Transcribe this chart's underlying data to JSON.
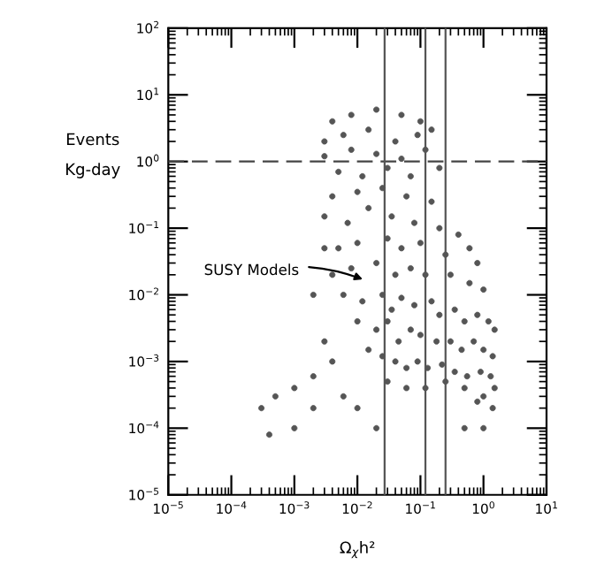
{
  "chart_data": {
    "type": "scatter",
    "xlabel": "Ω$_{χ}$h²",
    "ylabel": "Events\nKg-day",
    "log": "xy",
    "grid": false,
    "legend": false,
    "marker": "circle",
    "xlim": [
      1e-05,
      10
    ],
    "ylim": [
      1e-05,
      100
    ],
    "xticks": [
      {
        "value": 1e-05,
        "label": "10$^{−5}$"
      },
      {
        "value": 0.0001,
        "label": "10$^{−4}$"
      },
      {
        "value": 0.001,
        "label": "10$^{−3}$"
      },
      {
        "value": 0.01,
        "label": "10$^{−2}$"
      },
      {
        "value": 0.1,
        "label": "10$^{−1}$"
      },
      {
        "value": 1,
        "label": "10$^{0}$"
      },
      {
        "value": 10,
        "label": "10$^{1}$"
      }
    ],
    "yticks": [
      {
        "value": 1e-05,
        "label": "10$^{−5}$"
      },
      {
        "value": 0.0001,
        "label": "10$^{−4}$"
      },
      {
        "value": 0.001,
        "label": "10$^{−3}$"
      },
      {
        "value": 0.01,
        "label": "10$^{−2}$"
      },
      {
        "value": 0.1,
        "label": "10$^{−1}$"
      },
      {
        "value": 1,
        "label": "10$^{0}$"
      },
      {
        "value": 10,
        "label": "10$^{1}$"
      },
      {
        "value": 100,
        "label": "10$^{2}$"
      }
    ],
    "ref_lines": [
      {
        "axis": "y",
        "value": 1,
        "line_style": "dashed",
        "color": "#444444"
      },
      {
        "axis": "x",
        "value": 0.027,
        "line_style": "solid",
        "color": "#555555"
      },
      {
        "axis": "x",
        "value": 0.12,
        "line_style": "solid",
        "color": "#555555"
      },
      {
        "axis": "x",
        "value": 0.25,
        "line_style": "solid",
        "color": "#555555"
      }
    ],
    "annotations": [
      "SUSY Models"
    ],
    "series": [
      {
        "color": "#555555",
        "x": [
          0.004,
          0.008,
          0.02,
          0.05,
          0.1,
          0.003,
          0.006,
          0.015,
          0.04,
          0.09,
          0.15,
          0.003,
          0.008,
          0.02,
          0.05,
          0.12,
          0.005,
          0.012,
          0.03,
          0.07,
          0.2,
          0.004,
          0.01,
          0.025,
          0.06,
          0.15,
          0.003,
          0.007,
          0.015,
          0.035,
          0.08,
          0.2,
          0.4,
          0.6,
          0.005,
          0.01,
          0.03,
          0.05,
          0.1,
          0.25,
          0.8,
          0.004,
          0.008,
          0.02,
          0.04,
          0.07,
          0.12,
          0.3,
          0.6,
          1.0,
          0.006,
          0.012,
          0.025,
          0.035,
          0.05,
          0.08,
          0.15,
          0.2,
          0.35,
          0.5,
          0.8,
          1.2,
          1.5,
          0.01,
          0.02,
          0.03,
          0.045,
          0.07,
          0.1,
          0.18,
          0.3,
          0.45,
          0.7,
          1.0,
          1.4,
          0.015,
          0.025,
          0.04,
          0.06,
          0.09,
          0.13,
          0.22,
          0.35,
          0.55,
          0.9,
          1.3,
          1.5,
          0.03,
          0.06,
          0.12,
          0.25,
          0.5,
          1.0,
          1.4,
          0.8,
          0.0003,
          0.0005,
          0.001,
          0.002,
          0.004,
          0.0004,
          0.001,
          0.002,
          0.006,
          0.01,
          0.003,
          0.002,
          0.003,
          0.5,
          1.0,
          0.02
        ],
        "values": [
          4,
          5,
          6,
          5,
          4,
          2,
          2.5,
          3,
          2,
          2.5,
          3,
          1.2,
          1.5,
          1.3,
          1.1,
          1.5,
          0.7,
          0.6,
          0.8,
          0.6,
          0.8,
          0.3,
          0.35,
          0.4,
          0.3,
          0.25,
          0.15,
          0.12,
          0.2,
          0.15,
          0.12,
          0.1,
          0.08,
          0.05,
          0.05,
          0.06,
          0.07,
          0.05,
          0.06,
          0.04,
          0.03,
          0.02,
          0.025,
          0.03,
          0.02,
          0.025,
          0.02,
          0.02,
          0.015,
          0.012,
          0.01,
          0.008,
          0.01,
          0.006,
          0.009,
          0.007,
          0.008,
          0.005,
          0.006,
          0.004,
          0.005,
          0.004,
          0.003,
          0.004,
          0.003,
          0.004,
          0.002,
          0.003,
          0.0025,
          0.002,
          0.002,
          0.0015,
          0.002,
          0.0015,
          0.0012,
          0.0015,
          0.0012,
          0.001,
          0.0008,
          0.001,
          0.0008,
          0.0009,
          0.0007,
          0.0006,
          0.0007,
          0.0006,
          0.0004,
          0.0005,
          0.0004,
          0.0004,
          0.0005,
          0.0004,
          0.0003,
          0.0002,
          0.00025,
          0.0002,
          0.0003,
          0.0004,
          0.0006,
          0.001,
          8e-05,
          0.0001,
          0.0002,
          0.0003,
          0.0002,
          0.002,
          0.01,
          0.05,
          0.0001,
          0.0001,
          0.0001
        ]
      }
    ]
  }
}
